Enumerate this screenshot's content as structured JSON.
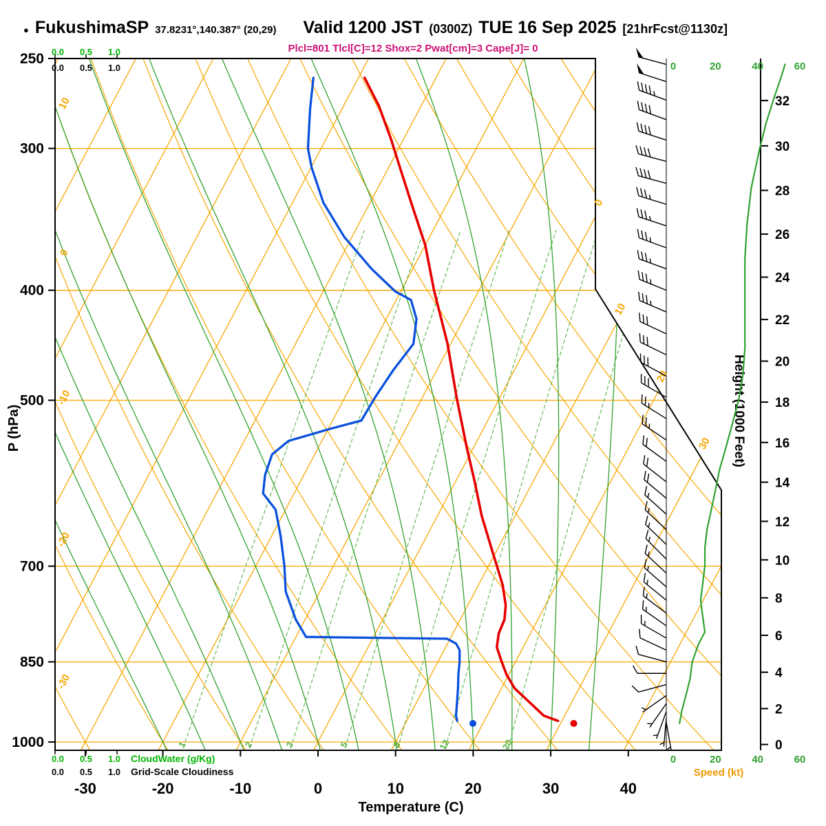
{
  "header": {
    "bullet": "●",
    "station": "FukushimaSP",
    "coords": "37.8231°,140.387° (20,29)",
    "valid": "Valid 1200 JST",
    "valid_z": "(0300Z)",
    "date": "TUE 16 Sep 2025",
    "fcst": "[21hrFcst@1130z]",
    "params": "Plcl=801 Tlcl[C]=12 Shox=2 Pwat[cm]=3 Cape[J]= 0"
  },
  "axes": {
    "pressure_label": "P (hPa)",
    "pressure_ticks": [
      250,
      300,
      400,
      500,
      700,
      850,
      1000
    ],
    "temperature_label": "Temperature (C)",
    "temperature_ticks": [
      -30,
      -20,
      -10,
      0,
      10,
      20,
      30,
      40
    ],
    "height_label": "Height (1000 Feet)",
    "height_ticks": [
      0,
      2,
      4,
      6,
      8,
      10,
      12,
      14,
      16,
      18,
      20,
      22,
      24,
      26,
      28,
      30,
      32
    ],
    "speed_label": "Speed (kt)",
    "speed_ticks": [
      0,
      20,
      40,
      60
    ],
    "cloudwater_label": "CloudWater (g/Kg)",
    "cloudwater_scale": [
      "0.0",
      "0.5",
      "1.0"
    ],
    "gridscale_label": "Grid-Scale Cloudiness",
    "gridscale_scale": [
      "0.0",
      "0.5",
      "1.0"
    ],
    "dry_adiabat_labels": [
      10,
      0,
      -10,
      -20,
      -30
    ],
    "isotherm_labels": [
      0,
      10,
      20,
      30
    ],
    "mixing_ratio_labels": [
      1,
      2,
      3,
      5,
      8,
      12,
      20
    ]
  },
  "chart_data": {
    "type": "skewt-logp-sounding",
    "pressure_range_hpa": [
      250,
      1017
    ],
    "temperature_axis_range_c": [
      -35,
      45
    ],
    "skew_grid": {
      "isotherm_step_c": 10,
      "dry_adiabat_step_c": 10,
      "moist_adiabats_c": [
        -20,
        -15,
        -10,
        -5,
        0,
        5,
        10,
        15,
        20,
        25,
        30,
        35
      ],
      "mixing_ratio_g_per_kg": [
        1,
        2,
        3,
        5,
        8,
        12,
        20
      ]
    },
    "temperature_profile_p_t": [
      [
        958,
        29.5
      ],
      [
        948,
        27.3
      ],
      [
        922,
        24.5
      ],
      [
        897,
        21.7
      ],
      [
        872,
        19.7
      ],
      [
        848,
        18.1
      ],
      [
        825,
        16.6
      ],
      [
        802,
        15.9
      ],
      [
        780,
        15.7
      ],
      [
        758,
        14.9
      ],
      [
        727,
        13.1
      ],
      [
        700,
        11.1
      ],
      [
        678,
        9.4
      ],
      [
        632,
        5.7
      ],
      [
        590,
        2.5
      ],
      [
        550,
        -0.9
      ],
      [
        497,
        -5.6
      ],
      [
        446,
        -10.4
      ],
      [
        400,
        -15.8
      ],
      [
        365,
        -20.0
      ],
      [
        338,
        -24.2
      ],
      [
        315,
        -28.0
      ],
      [
        294,
        -31.7
      ],
      [
        275,
        -35.5
      ],
      [
        260,
        -39.2
      ]
    ],
    "dewpoint_profile_p_t": [
      [
        958,
        16.5
      ],
      [
        948,
        16.0
      ],
      [
        922,
        15.2
      ],
      [
        897,
        14.4
      ],
      [
        872,
        13.5
      ],
      [
        850,
        12.8
      ],
      [
        830,
        12.0
      ],
      [
        819,
        11.1
      ],
      [
        811,
        9.6
      ],
      [
        808,
        -8.7
      ],
      [
        780,
        -11.2
      ],
      [
        737,
        -14.4
      ],
      [
        700,
        -16.3
      ],
      [
        659,
        -18.8
      ],
      [
        624,
        -21.3
      ],
      [
        604,
        -24.0
      ],
      [
        582,
        -25.0
      ],
      [
        558,
        -25.5
      ],
      [
        543,
        -24.3
      ],
      [
        530,
        -19.8
      ],
      [
        521,
        -16.3
      ],
      [
        497,
        -16.1
      ],
      [
        470,
        -15.6
      ],
      [
        446,
        -14.8
      ],
      [
        424,
        -16.1
      ],
      [
        408,
        -18.1
      ],
      [
        401,
        -20.7
      ],
      [
        383,
        -25.3
      ],
      [
        359,
        -31.0
      ],
      [
        335,
        -36.0
      ],
      [
        312,
        -39.9
      ],
      [
        300,
        -41.7
      ],
      [
        277,
        -44.1
      ],
      [
        260,
        -45.8
      ]
    ],
    "surface_temperature_dot": {
      "p": 963,
      "t": 31.7
    },
    "surface_dewpoint_dot": {
      "p": 963,
      "t": 18.7
    },
    "wind_barbs_p_dir_kt": [
      [
        253,
        285,
        50
      ],
      [
        262,
        288,
        48
      ],
      [
        272,
        290,
        45
      ],
      [
        283,
        290,
        42
      ],
      [
        295,
        288,
        40
      ],
      [
        308,
        285,
        40
      ],
      [
        322,
        285,
        38
      ],
      [
        336,
        287,
        35
      ],
      [
        351,
        288,
        35
      ],
      [
        367,
        290,
        34
      ],
      [
        383,
        290,
        34
      ],
      [
        400,
        292,
        35
      ],
      [
        418,
        293,
        33
      ],
      [
        437,
        295,
        32
      ],
      [
        456,
        296,
        30
      ],
      [
        476,
        298,
        30
      ],
      [
        497,
        300,
        28
      ],
      [
        519,
        302,
        27
      ],
      [
        542,
        304,
        25
      ],
      [
        566,
        306,
        22
      ],
      [
        590,
        308,
        20
      ],
      [
        610,
        310,
        18
      ],
      [
        630,
        312,
        17
      ],
      [
        650,
        313,
        16
      ],
      [
        670,
        314,
        15
      ],
      [
        690,
        315,
        15
      ],
      [
        710,
        313,
        15
      ],
      [
        730,
        311,
        16
      ],
      [
        750,
        309,
        16
      ],
      [
        770,
        307,
        15
      ],
      [
        790,
        305,
        14
      ],
      [
        810,
        300,
        13
      ],
      [
        830,
        295,
        12
      ],
      [
        850,
        285,
        10
      ],
      [
        870,
        270,
        9
      ],
      [
        890,
        255,
        8
      ],
      [
        910,
        235,
        7
      ],
      [
        925,
        215,
        6
      ],
      [
        940,
        200,
        5
      ],
      [
        952,
        185,
        4
      ],
      [
        961,
        170,
        3
      ]
    ],
    "speed_profile_p_kt": [
      [
        963,
        3
      ],
      [
        940,
        4
      ],
      [
        910,
        6
      ],
      [
        880,
        8
      ],
      [
        850,
        9
      ],
      [
        820,
        12
      ],
      [
        800,
        15
      ],
      [
        775,
        14
      ],
      [
        750,
        13
      ],
      [
        725,
        14
      ],
      [
        700,
        15
      ],
      [
        675,
        15
      ],
      [
        650,
        16
      ],
      [
        625,
        18
      ],
      [
        600,
        20
      ],
      [
        575,
        22
      ],
      [
        550,
        25
      ],
      [
        525,
        28
      ],
      [
        500,
        31
      ],
      [
        475,
        33
      ],
      [
        450,
        34
      ],
      [
        425,
        34
      ],
      [
        400,
        34
      ],
      [
        375,
        34
      ],
      [
        350,
        35
      ],
      [
        325,
        37
      ],
      [
        300,
        41
      ],
      [
        285,
        44
      ],
      [
        270,
        48
      ],
      [
        260,
        51
      ],
      [
        253,
        53
      ]
    ]
  },
  "colors": {
    "grid": "#f7a600",
    "green": "#2fa12f",
    "green2": "#55b344",
    "cloud_green": "#00b400",
    "red": "#e60000",
    "blue": "#0a50dd",
    "params": "#cc1177",
    "speed_label": "#ee9900",
    "frame": "#000000"
  }
}
